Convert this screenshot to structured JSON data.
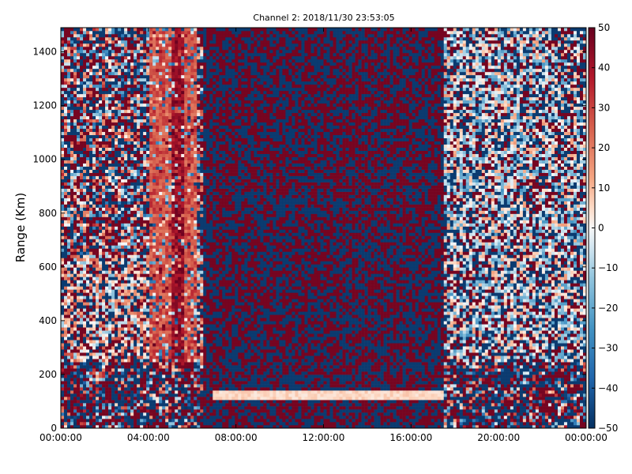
{
  "chart_data": {
    "type": "heatmap",
    "title": "Channel 2: 2018/11/30 23:53:05",
    "xlabel": "",
    "ylabel": "Range (Km)",
    "x_ticks": [
      "00:00:00",
      "04:00:00",
      "08:00:00",
      "12:00:00",
      "16:00:00",
      "20:00:00",
      "00:00:00"
    ],
    "x_range_hours": [
      0,
      24
    ],
    "y_ticks": [
      0,
      200,
      400,
      600,
      800,
      1000,
      1200,
      1400
    ],
    "ylim": [
      0,
      1490
    ],
    "colorbar": {
      "ticks": [
        50,
        40,
        30,
        20,
        10,
        0,
        -10,
        -20,
        -30,
        -40,
        -50
      ],
      "range": [
        -50,
        50
      ],
      "colormap": "diverging red-white-blue",
      "high_color": "#67001f",
      "low_color": "#053061"
    },
    "grid": false,
    "legend": "none"
  }
}
